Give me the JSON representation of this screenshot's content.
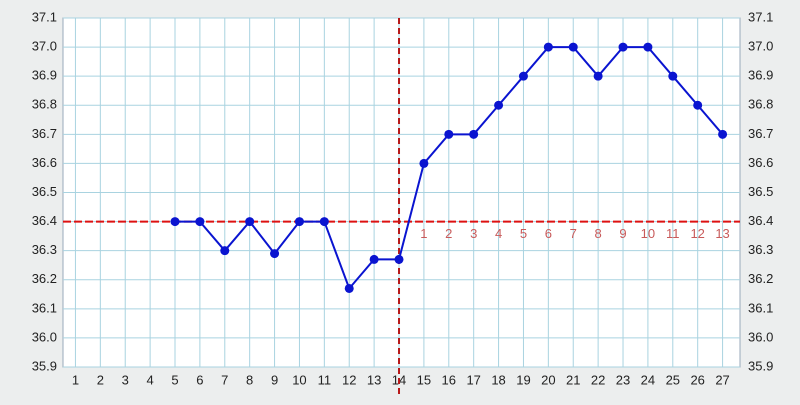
{
  "chart_data": {
    "type": "line",
    "x": [
      1,
      2,
      3,
      4,
      5,
      6,
      7,
      8,
      9,
      10,
      11,
      12,
      13,
      14,
      15,
      16,
      17,
      18,
      19,
      20,
      21,
      22,
      23,
      24,
      25,
      26,
      27
    ],
    "series": [
      {
        "color": "#0a14d0",
        "values": [
          null,
          null,
          null,
          null,
          36.4,
          36.4,
          36.3,
          36.4,
          36.29,
          36.4,
          36.4,
          36.17,
          36.27,
          36.27,
          36.6,
          36.7,
          36.7,
          36.8,
          36.9,
          37.0,
          37.0,
          36.9,
          37.0,
          37.0,
          36.9,
          36.8,
          36.7
        ]
      }
    ],
    "xlim": [
      0.5,
      27.7
    ],
    "ylim": [
      35.9,
      37.1
    ],
    "yticks": [
      35.9,
      36.1,
      36.2,
      36.3,
      36.4,
      36.5,
      36.6,
      36.7,
      36.8,
      36.9,
      {
        "value": 36.0,
        "label": "36.0"
      },
      {
        "value": 37.0,
        "label": "37.0"
      },
      37.1
    ],
    "grid": true,
    "hlines": [
      {
        "value": 36.4,
        "color": "#dd1111"
      }
    ],
    "vlines": [
      {
        "value": 14,
        "color": "#b81818"
      }
    ],
    "luteal_days": {
      "x": [
        15,
        16,
        17,
        18,
        19,
        20,
        21,
        22,
        23,
        24,
        25,
        26,
        27
      ],
      "values": [
        1,
        2,
        3,
        4,
        5,
        6,
        7,
        8,
        9,
        10,
        11,
        12,
        13
      ]
    }
  }
}
